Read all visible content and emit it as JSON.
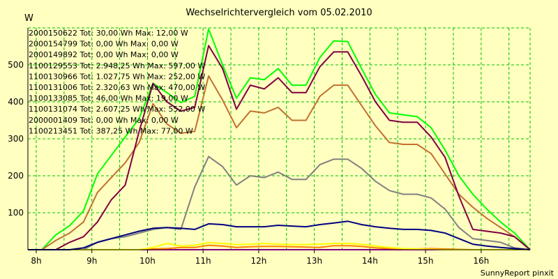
{
  "chart_data": {
    "type": "line",
    "title": "Wechselrichtervergleich vom 05.02.2010",
    "ylabel": "W",
    "xlabel": "",
    "footer": "SunnyReport pinxit",
    "xlim": [
      7.85,
      16.88
    ],
    "ylim": [
      0,
      600
    ],
    "x_ticks": [
      8,
      9,
      10,
      11,
      12,
      13,
      14,
      15,
      16
    ],
    "x_tick_labels": [
      "8h",
      "9h",
      "10h",
      "11h",
      "12h",
      "13h",
      "14h",
      "15h",
      "16h"
    ],
    "y_ticks": [
      0,
      100,
      200,
      300,
      400,
      500
    ],
    "y_tick_labels": [
      "",
      "100",
      "200",
      "300",
      "400",
      "500"
    ],
    "grid": true,
    "legend_position": "top-left",
    "colors": {
      "background": "#ffffc0",
      "grid": "#00c000",
      "axis": "#000000"
    },
    "x": [
      7.85,
      8.1,
      8.35,
      8.6,
      8.85,
      9.1,
      9.35,
      9.6,
      9.85,
      10.1,
      10.35,
      10.6,
      10.85,
      11.1,
      11.35,
      11.6,
      11.85,
      12.1,
      12.35,
      12.6,
      12.85,
      13.1,
      13.35,
      13.6,
      13.85,
      14.1,
      14.35,
      14.6,
      14.85,
      15.1,
      15.35,
      15.6,
      15.85,
      16.1,
      16.35,
      16.6,
      16.88
    ],
    "series": [
      {
        "name": "2000150622 Tot: 30,00 Wh Max: 12,00 W",
        "color": "#ff8000",
        "values": [
          0,
          0,
          0,
          0,
          0,
          0,
          0,
          0,
          0,
          2,
          3,
          6,
          6,
          12,
          10,
          6,
          8,
          9,
          9,
          8,
          7,
          6,
          11,
          11,
          9,
          5,
          3,
          2,
          2,
          3,
          2,
          1,
          0,
          0,
          0,
          0,
          0
        ]
      },
      {
        "name": "2000154799 Tot: 0,00 Wh Max: 0,00 W",
        "color": "#000000",
        "values": [
          0,
          0,
          0,
          0,
          0,
          0,
          0,
          0,
          0,
          0,
          0,
          0,
          0,
          0,
          0,
          0,
          0,
          0,
          0,
          0,
          0,
          0,
          0,
          0,
          0,
          0,
          0,
          0,
          0,
          0,
          0,
          0,
          0,
          0,
          0,
          0,
          0
        ]
      },
      {
        "name": "2000149892 Tot: 0,00 Wh Max: 0,00 W",
        "color": "#00e0e0",
        "values": [
          0,
          0,
          0,
          0,
          0,
          0,
          0,
          0,
          0,
          0,
          0,
          0,
          0,
          0,
          0,
          0,
          0,
          0,
          0,
          0,
          0,
          0,
          0,
          0,
          0,
          0,
          0,
          0,
          0,
          0,
          0,
          0,
          0,
          0,
          0,
          0,
          0
        ]
      },
      {
        "name": "1100129553 Tot: 2.948,25 Wh Max: 597,00 W",
        "color": "#00ff00",
        "values": [
          0,
          0,
          40,
          65,
          105,
          205,
          255,
          305,
          355,
          450,
          425,
          398,
          415,
          597,
          500,
          410,
          465,
          460,
          490,
          445,
          445,
          520,
          565,
          563,
          490,
          420,
          370,
          365,
          360,
          330,
          270,
          200,
          150,
          110,
          75,
          45,
          0
        ]
      },
      {
        "name": "1100130966 Tot: 1.027,75 Wh Max: 252,00 W",
        "color": "#808080",
        "values": [
          0,
          0,
          0,
          0,
          0,
          20,
          30,
          35,
          45,
          55,
          60,
          55,
          170,
          252,
          225,
          175,
          200,
          195,
          210,
          190,
          190,
          230,
          245,
          245,
          220,
          185,
          160,
          150,
          150,
          140,
          110,
          60,
          30,
          25,
          20,
          5,
          0
        ]
      },
      {
        "name": "1100131006 Tot: 2.320,63 Wh Max: 470,00 W",
        "color": "#c07030",
        "values": [
          0,
          0,
          25,
          45,
          75,
          155,
          195,
          235,
          290,
          395,
          340,
          315,
          320,
          470,
          405,
          330,
          375,
          370,
          385,
          350,
          350,
          415,
          445,
          445,
          390,
          335,
          290,
          285,
          285,
          260,
          205,
          150,
          115,
          85,
          60,
          35,
          0
        ]
      },
      {
        "name": "1100133085 Tot: 46,00 Wh Max: 19,00 W",
        "color": "#ffff00",
        "values": [
          0,
          0,
          0,
          0,
          0,
          0,
          0,
          0,
          0,
          6,
          17,
          10,
          12,
          19,
          17,
          14,
          15,
          17,
          15,
          14,
          14,
          15,
          17,
          17,
          15,
          10,
          6,
          3,
          2,
          1,
          0,
          0,
          0,
          0,
          0,
          0,
          0
        ]
      },
      {
        "name": "1100131074 Tot: 2.607,25 Wh Max: 552,00 W",
        "color": "#800040",
        "values": [
          0,
          0,
          0,
          20,
          35,
          75,
          135,
          175,
          320,
          450,
          400,
          375,
          385,
          552,
          490,
          380,
          445,
          435,
          465,
          425,
          425,
          495,
          535,
          535,
          470,
          400,
          350,
          345,
          345,
          305,
          250,
          145,
          55,
          50,
          45,
          35,
          0
        ]
      },
      {
        "name": "2000001409 Tot: 0,00 Wh Max: 0,00 W",
        "color": "#ff00ff",
        "values": [
          0,
          0,
          0,
          0,
          0,
          0,
          0,
          0,
          0,
          0,
          0,
          0,
          0,
          0,
          0,
          0,
          0,
          0,
          0,
          0,
          0,
          0,
          0,
          0,
          0,
          0,
          0,
          0,
          0,
          0,
          0,
          0,
          0,
          0,
          0,
          0,
          0
        ]
      },
      {
        "name": "1100213451 Tot: 387,25 Wh Max: 77,00 W",
        "color": "#000080",
        "values": [
          0,
          0,
          0,
          0,
          5,
          20,
          30,
          40,
          50,
          58,
          60,
          58,
          55,
          70,
          68,
          62,
          62,
          62,
          66,
          64,
          62,
          68,
          72,
          77,
          68,
          62,
          58,
          55,
          55,
          52,
          45,
          30,
          15,
          10,
          6,
          3,
          0
        ]
      }
    ]
  }
}
